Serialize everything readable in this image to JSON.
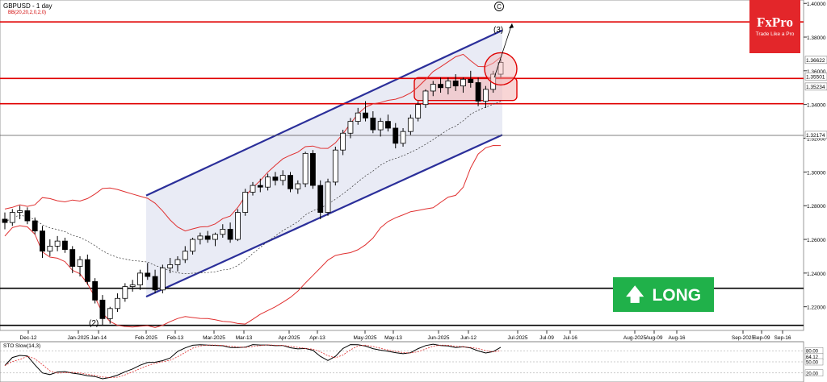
{
  "header": {
    "symbol_title": "GBPUSD - 1 day",
    "indicator_label": "BB(20,20,2,0,2,0)"
  },
  "oscillator": {
    "label": "STO Slow(14,3)"
  },
  "brand": {
    "name": "FxPro",
    "tagline": "Trade Like a Pro"
  },
  "signal": {
    "label": "LONG",
    "arrow_icon": "up-arrow-icon",
    "color": "#20b14a"
  },
  "colors": {
    "up": "#1d8a2a",
    "down": "#000000",
    "band": "#e03030",
    "channel": "#2b2f9a",
    "level": "#e00000",
    "support": "#000000",
    "brand": "#e3262a"
  },
  "chart_data": {
    "type": "candlestick",
    "x_ticks": [
      "Dec-12",
      "Jan-2025",
      "Jan-14",
      "Feb-2025",
      "Feb-13",
      "Mar-2025",
      "Mar-13",
      "Apr-2025",
      "Apr-13",
      "May-2025",
      "May-13",
      "Jun-2025",
      "Jun-12",
      "Jul-2025",
      "Jul-09",
      "Jul-16",
      "Aug-2025",
      "Aug-09",
      "Aug-16",
      "Sep-2025",
      "Sep-09",
      "Sep-16"
    ],
    "y_ticks": [
      "1.40000",
      "1.38000",
      "1.36000",
      "1.34000",
      "1.32000",
      "1.30000",
      "1.28000",
      "1.26000",
      "1.24000",
      "1.22000"
    ],
    "price_labels": [
      "1.36622",
      "1.35501",
      "1.35234",
      "1.32174"
    ],
    "ylim": [
      1.206,
      1.402
    ],
    "resistance_levels": [
      1.389,
      1.3555,
      1.3405
    ],
    "support_levels": [
      1.231,
      1.209
    ],
    "reference_level": 1.3217,
    "channel": {
      "upper": [
        [
          "Feb-2025",
          1.286
        ],
        [
          "Jun-2025",
          1.384
        ]
      ],
      "lower": [
        [
          "Feb-2025",
          1.226
        ],
        [
          "Jun-2025",
          1.322
        ]
      ]
    },
    "wave_labels": [
      "(2)",
      "(3)",
      "C"
    ],
    "sto_ticks": [
      "80.00",
      "64.12",
      "50.00",
      "20.00"
    ],
    "candles": [
      [
        "Dec-12",
        1.272,
        1.276,
        1.266,
        1.27
      ],
      [
        "",
        1.27,
        1.278,
        1.268,
        1.276
      ],
      [
        "",
        1.276,
        1.28,
        1.272,
        1.277
      ],
      [
        "",
        1.277,
        1.279,
        1.269,
        1.271
      ],
      [
        "",
        1.271,
        1.273,
        1.263,
        1.265
      ],
      [
        "",
        1.265,
        1.268,
        1.249,
        1.253
      ],
      [
        "",
        1.253,
        1.26,
        1.25,
        1.256
      ],
      [
        "",
        1.256,
        1.262,
        1.253,
        1.259
      ],
      [
        "",
        1.259,
        1.261,
        1.252,
        1.254
      ],
      [
        "Jan-2025",
        1.254,
        1.256,
        1.24,
        1.244
      ],
      [
        "",
        1.244,
        1.25,
        1.238,
        1.248
      ],
      [
        "",
        1.248,
        1.251,
        1.233,
        1.235
      ],
      [
        "",
        1.235,
        1.237,
        1.222,
        1.224
      ],
      [
        "",
        1.224,
        1.227,
        1.209,
        1.213
      ],
      [
        "Jan-14",
        1.213,
        1.22,
        1.21,
        1.219
      ],
      [
        "",
        1.219,
        1.228,
        1.217,
        1.225
      ],
      [
        "",
        1.225,
        1.234,
        1.223,
        1.232
      ],
      [
        "",
        1.232,
        1.236,
        1.229,
        1.233
      ],
      [
        "",
        1.233,
        1.242,
        1.23,
        1.24
      ],
      [
        "Feb-2025",
        1.24,
        1.246,
        1.236,
        1.238
      ],
      [
        "",
        1.238,
        1.242,
        1.228,
        1.23
      ],
      [
        "",
        1.23,
        1.245,
        1.228,
        1.243
      ],
      [
        "",
        1.243,
        1.249,
        1.24,
        1.245
      ],
      [
        "",
        1.245,
        1.25,
        1.241,
        1.248
      ],
      [
        "Feb-13",
        1.248,
        1.256,
        1.246,
        1.253
      ],
      [
        "",
        1.253,
        1.261,
        1.251,
        1.26
      ],
      [
        "",
        1.26,
        1.264,
        1.257,
        1.262
      ],
      [
        "",
        1.262,
        1.265,
        1.258,
        1.26
      ],
      [
        "",
        1.26,
        1.264,
        1.256,
        1.263
      ],
      [
        "Mar-2025",
        1.263,
        1.269,
        1.261,
        1.266
      ],
      [
        "",
        1.266,
        1.27,
        1.258,
        1.26
      ],
      [
        "",
        1.26,
        1.278,
        1.259,
        1.276
      ],
      [
        "",
        1.276,
        1.29,
        1.274,
        1.288
      ],
      [
        "",
        1.288,
        1.294,
        1.286,
        1.292
      ],
      [
        "Mar-13",
        1.292,
        1.296,
        1.288,
        1.291
      ],
      [
        "",
        1.291,
        1.299,
        1.289,
        1.297
      ],
      [
        "",
        1.297,
        1.3,
        1.292,
        1.295
      ],
      [
        "",
        1.295,
        1.301,
        1.292,
        1.298
      ],
      [
        "",
        1.298,
        1.3,
        1.288,
        1.29
      ],
      [
        "Apr-2025",
        1.29,
        1.295,
        1.287,
        1.293
      ],
      [
        "",
        1.293,
        1.312,
        1.291,
        1.311
      ],
      [
        "",
        1.311,
        1.313,
        1.29,
        1.292
      ],
      [
        "",
        1.292,
        1.295,
        1.272,
        1.276
      ],
      [
        "",
        1.276,
        1.296,
        1.274,
        1.294
      ],
      [
        "Apr-13",
        1.294,
        1.315,
        1.292,
        1.313
      ],
      [
        "",
        1.313,
        1.325,
        1.31,
        1.323
      ],
      [
        "",
        1.323,
        1.332,
        1.32,
        1.33
      ],
      [
        "",
        1.33,
        1.338,
        1.328,
        1.335
      ],
      [
        "",
        1.335,
        1.342,
        1.33,
        1.332
      ],
      [
        "May-2025",
        1.332,
        1.336,
        1.323,
        1.325
      ],
      [
        "",
        1.325,
        1.332,
        1.321,
        1.33
      ],
      [
        "",
        1.33,
        1.334,
        1.324,
        1.326
      ],
      [
        "",
        1.326,
        1.329,
        1.314,
        1.317
      ],
      [
        "May-13",
        1.317,
        1.326,
        1.315,
        1.324
      ],
      [
        "",
        1.324,
        1.334,
        1.322,
        1.332
      ],
      [
        "",
        1.332,
        1.342,
        1.33,
        1.34
      ],
      [
        "",
        1.34,
        1.349,
        1.338,
        1.348
      ],
      [
        "",
        1.348,
        1.354,
        1.345,
        1.352
      ],
      [
        "Jun-2025",
        1.352,
        1.356,
        1.347,
        1.35
      ],
      [
        "",
        1.35,
        1.356,
        1.346,
        1.354
      ],
      [
        "",
        1.354,
        1.358,
        1.348,
        1.351
      ],
      [
        "",
        1.351,
        1.356,
        1.347,
        1.355
      ],
      [
        "Jun-12",
        1.355,
        1.36,
        1.35,
        1.353
      ],
      [
        "",
        1.353,
        1.356,
        1.339,
        1.342
      ],
      [
        "",
        1.342,
        1.351,
        1.338,
        1.349
      ],
      [
        "",
        1.349,
        1.36,
        1.347,
        1.358
      ],
      [
        "",
        1.358,
        1.367,
        1.356,
        1.365
      ]
    ]
  }
}
